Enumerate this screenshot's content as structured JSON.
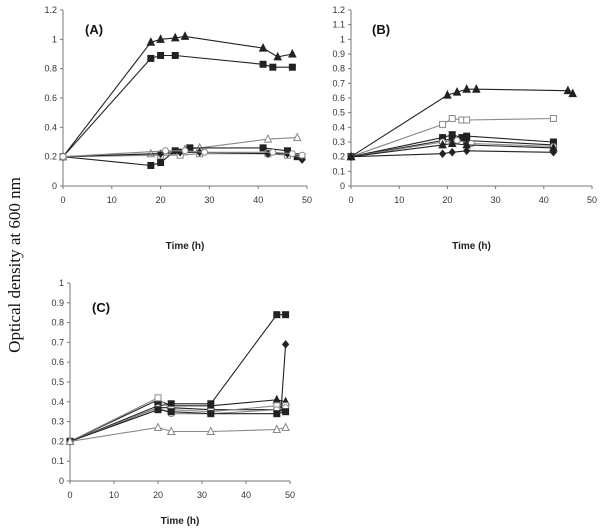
{
  "figure": {
    "ylabel": "Optical density at 600 nm"
  },
  "chart_data": [
    {
      "type": "line",
      "panel_label": "(A)",
      "xlabel": "Time (h)",
      "xlim": [
        0,
        50
      ],
      "ylim": [
        0,
        1.2
      ],
      "xticks": [
        0,
        10,
        20,
        30,
        40,
        50
      ],
      "yticks": [
        0,
        0.2,
        0.4,
        0.6,
        0.8,
        1,
        1.2
      ],
      "series": [
        {
          "marker": "triangle",
          "color": "#222222",
          "x": [
            0,
            18,
            20,
            23,
            25,
            41,
            44,
            47
          ],
          "y": [
            0.2,
            0.98,
            1.0,
            1.01,
            1.02,
            0.94,
            0.88,
            0.9
          ]
        },
        {
          "marker": "square",
          "color": "#222222",
          "x": [
            0,
            18,
            20,
            23,
            41,
            43,
            47
          ],
          "y": [
            0.2,
            0.87,
            0.89,
            0.89,
            0.83,
            0.81,
            0.81
          ]
        },
        {
          "marker": "open-triangle",
          "color": "#888888",
          "x": [
            0,
            18,
            21,
            25,
            28,
            42,
            48
          ],
          "y": [
            0.2,
            0.22,
            0.23,
            0.25,
            0.26,
            0.32,
            0.33
          ]
        },
        {
          "marker": "square",
          "color": "#222222",
          "x": [
            0,
            18,
            20,
            23,
            26,
            41,
            46,
            48
          ],
          "y": [
            0.2,
            0.14,
            0.16,
            0.24,
            0.26,
            0.26,
            0.24,
            0.2
          ]
        },
        {
          "marker": "open-square",
          "color": "#888888",
          "x": [
            0,
            20,
            24,
            28,
            42,
            46,
            49
          ],
          "y": [
            0.2,
            0.21,
            0.21,
            0.22,
            0.22,
            0.21,
            0.2
          ]
        },
        {
          "marker": "diamond",
          "color": "#222222",
          "x": [
            0,
            20,
            24,
            28,
            42,
            46,
            49
          ],
          "y": [
            0.2,
            0.22,
            0.23,
            0.23,
            0.22,
            0.22,
            0.18
          ]
        },
        {
          "marker": "open-circle",
          "color": "#888888",
          "x": [
            0,
            21,
            25,
            29,
            43,
            47,
            49
          ],
          "y": [
            0.2,
            0.24,
            0.24,
            0.23,
            0.23,
            0.22,
            0.21
          ]
        }
      ]
    },
    {
      "type": "line",
      "panel_label": "(B)",
      "xlabel": "Time (h)",
      "xlim": [
        0,
        50
      ],
      "ylim": [
        0,
        1.2
      ],
      "xticks": [
        0,
        10,
        20,
        30,
        40,
        50
      ],
      "yticks": [
        0,
        0.1,
        0.2,
        0.3,
        0.4,
        0.5,
        0.6,
        0.7,
        0.8,
        0.9,
        1,
        1.1,
        1.2
      ],
      "series": [
        {
          "marker": "triangle",
          "color": "#222222",
          "x": [
            0,
            20,
            22,
            24,
            26,
            45,
            46
          ],
          "y": [
            0.2,
            0.62,
            0.64,
            0.66,
            0.66,
            0.65,
            0.63
          ]
        },
        {
          "marker": "open-square",
          "color": "#888888",
          "x": [
            0,
            19,
            21,
            23,
            24,
            42
          ],
          "y": [
            0.2,
            0.42,
            0.46,
            0.45,
            0.45,
            0.46
          ]
        },
        {
          "marker": "square",
          "color": "#222222",
          "x": [
            0,
            19,
            21,
            23,
            24,
            42
          ],
          "y": [
            0.2,
            0.33,
            0.35,
            0.33,
            0.34,
            0.3
          ]
        },
        {
          "marker": "square",
          "color": "#222222",
          "x": [
            0,
            19,
            21,
            24,
            42
          ],
          "y": [
            0.2,
            0.31,
            0.32,
            0.31,
            0.28
          ]
        },
        {
          "marker": "open-circle",
          "color": "#888888",
          "x": [
            0,
            19,
            22,
            25,
            42
          ],
          "y": [
            0.2,
            0.3,
            0.31,
            0.29,
            0.27
          ]
        },
        {
          "marker": "triangle",
          "color": "#222222",
          "x": [
            0,
            19,
            21,
            24,
            42
          ],
          "y": [
            0.2,
            0.28,
            0.29,
            0.28,
            0.26
          ]
        },
        {
          "marker": "diamond",
          "color": "#222222",
          "x": [
            0,
            19,
            21,
            24,
            42
          ],
          "y": [
            0.2,
            0.22,
            0.23,
            0.24,
            0.23
          ]
        }
      ]
    },
    {
      "type": "line",
      "panel_label": "(C)",
      "xlabel": "Time (h)",
      "xlim": [
        0,
        50
      ],
      "ylim": [
        0,
        1
      ],
      "xticks": [
        0,
        10,
        20,
        30,
        40,
        50
      ],
      "yticks": [
        0,
        0.1,
        0.2,
        0.3,
        0.4,
        0.5,
        0.6,
        0.7,
        0.8,
        0.9,
        1
      ],
      "series": [
        {
          "marker": "square",
          "color": "#222222",
          "x": [
            0,
            20,
            23,
            32,
            47,
            49
          ],
          "y": [
            0.2,
            0.38,
            0.39,
            0.39,
            0.84,
            0.84
          ]
        },
        {
          "marker": "diamond",
          "color": "#222222",
          "x": [
            0,
            20,
            23,
            32,
            47,
            48,
            49
          ],
          "y": [
            0.2,
            0.37,
            0.37,
            0.36,
            0.36,
            0.37,
            0.69
          ]
        },
        {
          "marker": "triangle",
          "color": "#222222",
          "x": [
            0,
            20,
            23,
            32,
            47,
            49
          ],
          "y": [
            0.2,
            0.41,
            0.38,
            0.38,
            0.41,
            0.4
          ]
        },
        {
          "marker": "open-square",
          "color": "#888888",
          "x": [
            0,
            20,
            23,
            32,
            47,
            49
          ],
          "y": [
            0.2,
            0.42,
            0.36,
            0.35,
            0.38,
            0.38
          ]
        },
        {
          "marker": "open-circle",
          "color": "#888888",
          "x": [
            0,
            20,
            23,
            32,
            47,
            49
          ],
          "y": [
            0.2,
            0.37,
            0.34,
            0.34,
            0.36,
            0.37
          ]
        },
        {
          "marker": "square",
          "color": "#222222",
          "x": [
            0,
            20,
            23,
            32,
            47,
            49
          ],
          "y": [
            0.2,
            0.36,
            0.35,
            0.34,
            0.34,
            0.35
          ]
        },
        {
          "marker": "open-triangle",
          "color": "#888888",
          "x": [
            0,
            20,
            23,
            32,
            47,
            49
          ],
          "y": [
            0.2,
            0.27,
            0.25,
            0.25,
            0.26,
            0.27
          ]
        }
      ]
    }
  ]
}
